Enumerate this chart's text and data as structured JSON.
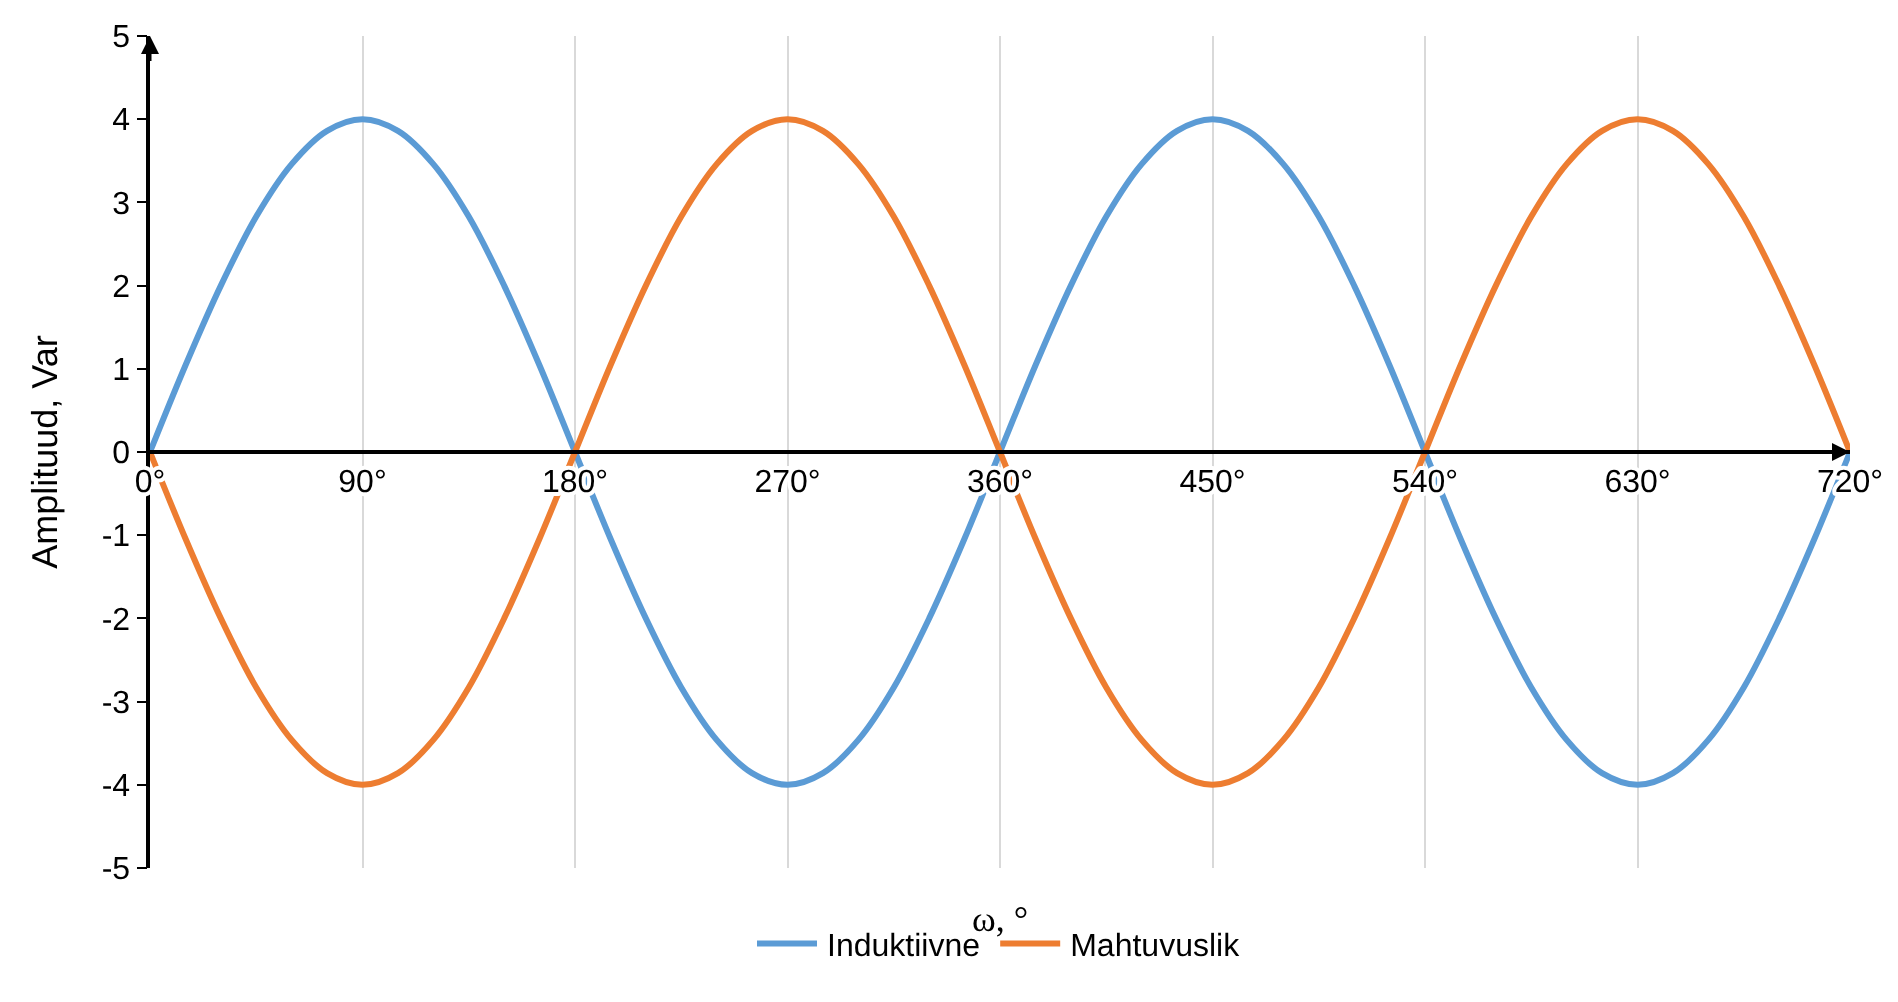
{
  "chart_data": {
    "type": "line",
    "xlabel": "ω, °",
    "ylabel": "Amplituud, Var",
    "x": [
      0,
      15,
      30,
      45,
      60,
      75,
      90,
      105,
      120,
      135,
      150,
      165,
      180,
      195,
      210,
      225,
      240,
      255,
      270,
      285,
      300,
      315,
      330,
      345,
      360,
      375,
      390,
      405,
      420,
      435,
      450,
      465,
      480,
      495,
      510,
      525,
      540,
      555,
      570,
      585,
      600,
      615,
      630,
      645,
      660,
      675,
      690,
      705,
      720
    ],
    "series": [
      {
        "name": "Induktiivne",
        "color": "#5b9bd5",
        "values": [
          0,
          1.04,
          2,
          2.83,
          3.46,
          3.86,
          4,
          3.86,
          3.46,
          2.83,
          2,
          1.04,
          0,
          -1.04,
          -2,
          -2.83,
          -3.46,
          -3.86,
          -4,
          -3.86,
          -3.46,
          -2.83,
          -2,
          -1.04,
          0,
          1.04,
          2,
          2.83,
          3.46,
          3.86,
          4,
          3.86,
          3.46,
          2.83,
          2,
          1.04,
          0,
          -1.04,
          -2,
          -2.83,
          -3.46,
          -3.86,
          -4,
          -3.86,
          -3.46,
          -2.83,
          -2,
          -1.04,
          0
        ]
      },
      {
        "name": "Mahtuvuslik",
        "color": "#ed7d31",
        "values": [
          0,
          -1.04,
          -2,
          -2.83,
          -3.46,
          -3.86,
          -4,
          -3.86,
          -3.46,
          -2.83,
          -2,
          -1.04,
          0,
          1.04,
          2,
          2.83,
          3.46,
          3.86,
          4,
          3.86,
          3.46,
          2.83,
          2,
          1.04,
          0,
          -1.04,
          -2,
          -2.83,
          -3.46,
          -3.86,
          -4,
          -3.86,
          -3.46,
          -2.83,
          -2,
          -1.04,
          0,
          1.04,
          2,
          2.83,
          3.46,
          3.86,
          4,
          3.86,
          3.46,
          2.83,
          2,
          1.04,
          0
        ]
      }
    ],
    "xlim": [
      0,
      720
    ],
    "xticks": [
      {
        "value": 0,
        "label": "0°"
      },
      {
        "value": 90,
        "label": "90°"
      },
      {
        "value": 180,
        "label": "180°"
      },
      {
        "value": 270,
        "label": "270°"
      },
      {
        "value": 360,
        "label": "360°"
      },
      {
        "value": 450,
        "label": "450°"
      },
      {
        "value": 540,
        "label": "540°"
      },
      {
        "value": 630,
        "label": "630°"
      },
      {
        "value": 720,
        "label": "720°"
      }
    ],
    "ylim": [
      -5,
      5
    ],
    "yticks": [
      -5,
      -4,
      -3,
      -2,
      -1,
      0,
      1,
      2,
      3,
      4,
      5
    ],
    "grid": "x",
    "legend": "bottom",
    "marker": "none",
    "line_style": "solid"
  }
}
